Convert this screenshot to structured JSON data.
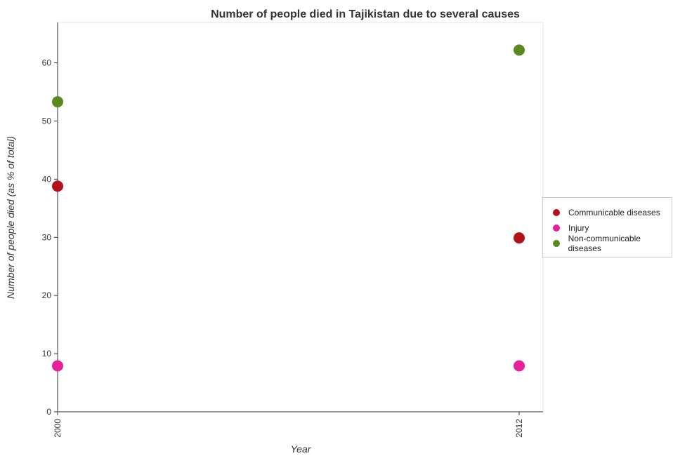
{
  "chart_data": {
    "type": "scatter",
    "title": "Number of people died in Tajikistan due to several causes",
    "xlabel": "Year",
    "ylabel": "Number of people died (as % of total)",
    "categories": [
      "2000",
      "2012"
    ],
    "ylim": [
      0,
      65
    ],
    "yticks": [
      0,
      10,
      20,
      30,
      40,
      50,
      60
    ],
    "grid": false,
    "legend_position": "right",
    "series": [
      {
        "name": "Communicable diseases",
        "color": "#b31119",
        "values": [
          38.8,
          29.9
        ]
      },
      {
        "name": "Injury",
        "color": "#e7219a",
        "values": [
          7.9,
          7.9
        ]
      },
      {
        "name": "Non-communicable diseases",
        "color": "#5a8a1f",
        "values": [
          53.3,
          62.2
        ]
      }
    ]
  }
}
